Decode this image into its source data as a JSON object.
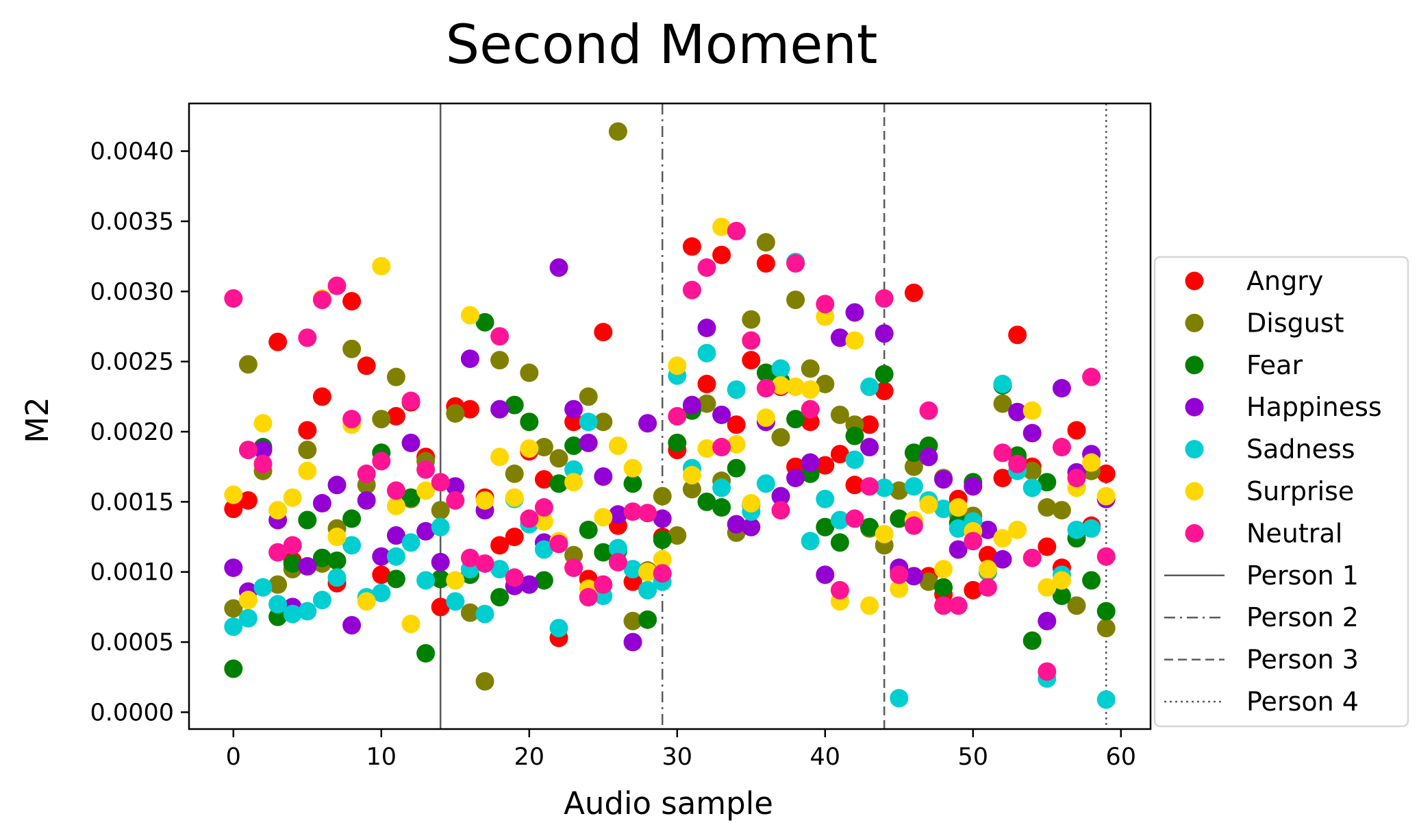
{
  "chart_data": {
    "type": "scatter",
    "title": "Second Moment",
    "xlabel": "Audio sample",
    "ylabel": "M2",
    "xlim": [
      -3,
      62
    ],
    "ylim": [
      -0.00012,
      0.00434
    ],
    "xticks": [
      0,
      10,
      20,
      30,
      40,
      50,
      60
    ],
    "xtick_labels": [
      "0",
      "10",
      "20",
      "30",
      "40",
      "50",
      "60"
    ],
    "yticks": [
      0,
      0.0005,
      0.001,
      0.0015,
      0.002,
      0.0025,
      0.003,
      0.0035,
      0.004
    ],
    "ytick_labels": [
      "0.0000",
      "0.0005",
      "0.0010",
      "0.0015",
      "0.0020",
      "0.0025",
      "0.0030",
      "0.0035",
      "0.0040"
    ],
    "grid": false,
    "legend_position": "outside-right",
    "series": [
      {
        "name": "Angry",
        "color": "#ff0000",
        "x": [
          0,
          1,
          3,
          4,
          5,
          6,
          7,
          8,
          9,
          10,
          11,
          12,
          13,
          14,
          15,
          16,
          17,
          18,
          19,
          20,
          21,
          22,
          23,
          24,
          25,
          26,
          27,
          28,
          29,
          30,
          31,
          32,
          33,
          34,
          35,
          36,
          37,
          38,
          39,
          40,
          41,
          42,
          43,
          44,
          45,
          46,
          47,
          48,
          49,
          50,
          51,
          52,
          53,
          54,
          55,
          56,
          57,
          58,
          59
        ],
        "y": [
          0.00145,
          0.00151,
          0.00264,
          0.00108,
          0.00201,
          0.00225,
          0.00092,
          0.00293,
          0.00247,
          0.00098,
          0.00211,
          0.00221,
          0.00182,
          0.00075,
          0.00218,
          0.00216,
          0.00153,
          0.00119,
          0.00125,
          0.00186,
          0.00166,
          0.00053,
          0.00207,
          0.00095,
          0.00271,
          0.00133,
          0.00093,
          0.00101,
          0.00125,
          0.00187,
          0.00332,
          0.00234,
          0.00326,
          0.00205,
          0.00251,
          0.0032,
          0.00232,
          0.00175,
          0.00207,
          0.00176,
          0.00184,
          0.00162,
          0.00205,
          0.00229,
          0.001,
          0.00299,
          0.00097,
          0.00084,
          0.00152,
          0.00087,
          0.00112,
          0.00167,
          0.00269,
          0.00175,
          0.00118,
          0.00103,
          0.00201,
          0.00133,
          0.0017
        ]
      },
      {
        "name": "Disgust",
        "color": "#808000",
        "x": [
          0,
          1,
          2,
          3,
          4,
          5,
          6,
          7,
          8,
          9,
          10,
          11,
          12,
          13,
          14,
          15,
          16,
          17,
          18,
          19,
          20,
          21,
          22,
          23,
          24,
          25,
          26,
          27,
          28,
          29,
          30,
          31,
          32,
          33,
          34,
          35,
          36,
          37,
          38,
          39,
          40,
          41,
          42,
          43,
          44,
          45,
          46,
          47,
          48,
          49,
          50,
          51,
          52,
          53,
          54,
          55,
          56,
          57,
          58,
          59
        ],
        "y": [
          0.00074,
          0.00248,
          0.00172,
          0.00091,
          0.00102,
          0.00187,
          0.00106,
          0.00131,
          0.00259,
          0.00162,
          0.00209,
          0.00239,
          0.00152,
          0.00179,
          0.00144,
          0.00213,
          0.00071,
          0.00022,
          0.00251,
          0.0017,
          0.00242,
          0.00189,
          0.00181,
          0.00112,
          0.00225,
          0.00207,
          0.00414,
          0.00065,
          0.00101,
          0.00154,
          0.00126,
          0.00159,
          0.0022,
          0.00165,
          0.00128,
          0.0028,
          0.00335,
          0.00196,
          0.00294,
          0.00245,
          0.00234,
          0.00212,
          0.00205,
          0.00131,
          0.00119,
          0.00158,
          0.00175,
          0.00093,
          0.00167,
          0.00141,
          0.0014,
          0.001,
          0.0022,
          0.00181,
          0.00172,
          0.00146,
          0.00144,
          0.00076,
          0.00172,
          0.0006
        ]
      },
      {
        "name": "Fear",
        "color": "#008000",
        "x": [
          0,
          2,
          3,
          4,
          5,
          6,
          7,
          8,
          10,
          11,
          12,
          13,
          14,
          16,
          17,
          18,
          19,
          20,
          21,
          22,
          23,
          24,
          25,
          26,
          27,
          28,
          29,
          30,
          31,
          32,
          33,
          34,
          35,
          36,
          37,
          38,
          39,
          40,
          41,
          42,
          43,
          44,
          45,
          46,
          47,
          48,
          49,
          50,
          52,
          53,
          54,
          55,
          56,
          57,
          58,
          59
        ],
        "y": [
          0.00031,
          0.00189,
          0.00068,
          0.00106,
          0.00137,
          0.0011,
          0.00108,
          0.00138,
          0.00185,
          0.00095,
          0.00153,
          0.00042,
          0.00095,
          0.00098,
          0.00278,
          0.00082,
          0.00219,
          0.00207,
          0.00094,
          0.00163,
          0.0019,
          0.0013,
          0.00114,
          0.00115,
          0.00163,
          0.00066,
          0.00123,
          0.00192,
          0.00215,
          0.0015,
          0.00146,
          0.00174,
          0.00148,
          0.00242,
          0.00236,
          0.00209,
          0.0017,
          0.00132,
          0.00121,
          0.00197,
          0.00132,
          0.00241,
          0.00138,
          0.00185,
          0.0019,
          0.00089,
          0.00135,
          0.00164,
          0.00233,
          0.00183,
          0.00051,
          0.00164,
          0.00083,
          0.00124,
          0.00094,
          0.00072
        ]
      },
      {
        "name": "Happiness",
        "color": "#9400d3",
        "x": [
          0,
          1,
          2,
          3,
          4,
          5,
          6,
          7,
          8,
          9,
          10,
          11,
          12,
          13,
          14,
          15,
          16,
          17,
          18,
          19,
          20,
          21,
          22,
          23,
          24,
          25,
          26,
          27,
          28,
          29,
          31,
          32,
          33,
          34,
          35,
          36,
          37,
          38,
          39,
          40,
          41,
          42,
          43,
          44,
          45,
          46,
          47,
          48,
          49,
          50,
          51,
          52,
          53,
          54,
          55,
          56,
          57,
          58,
          59
        ],
        "y": [
          0.00103,
          0.00086,
          0.00187,
          0.00137,
          0.00075,
          0.00104,
          0.00149,
          0.00162,
          0.00062,
          0.00151,
          0.00111,
          0.00126,
          0.00192,
          0.00129,
          0.00107,
          0.00161,
          0.00252,
          0.00144,
          0.00216,
          0.0009,
          0.00091,
          0.00121,
          0.00317,
          0.00216,
          0.00192,
          0.00168,
          0.00141,
          0.0005,
          0.00206,
          0.00138,
          0.00219,
          0.00274,
          0.00212,
          0.00134,
          0.00132,
          0.00207,
          0.00154,
          0.00167,
          0.00178,
          0.00098,
          0.00267,
          0.00285,
          0.00189,
          0.0027,
          0.00103,
          0.00097,
          0.00182,
          0.00166,
          0.00116,
          0.00161,
          0.0013,
          0.00109,
          0.00214,
          0.00199,
          0.00065,
          0.00231,
          0.00171,
          0.00184,
          0.00152
        ]
      },
      {
        "name": "Sadness",
        "color": "#00ced1",
        "x": [
          0,
          1,
          2,
          3,
          4,
          5,
          6,
          7,
          8,
          9,
          10,
          11,
          12,
          13,
          14,
          15,
          16,
          17,
          18,
          19,
          20,
          21,
          22,
          23,
          24,
          25,
          26,
          27,
          28,
          29,
          30,
          31,
          32,
          33,
          34,
          35,
          36,
          37,
          38,
          39,
          40,
          41,
          42,
          43,
          44,
          45,
          46,
          47,
          48,
          49,
          50,
          51,
          52,
          53,
          54,
          55,
          56,
          57,
          58,
          59
        ],
        "y": [
          0.00061,
          0.00067,
          0.00089,
          0.00077,
          0.0007,
          0.00072,
          0.0008,
          0.00096,
          0.00119,
          0.00082,
          0.00085,
          0.00111,
          0.00121,
          0.00094,
          0.00132,
          0.00079,
          0.00102,
          0.0007,
          0.00102,
          0.00152,
          0.00134,
          0.00116,
          0.0006,
          0.00173,
          0.00207,
          0.00083,
          0.00117,
          0.00102,
          0.00087,
          0.00093,
          0.0024,
          0.00174,
          0.00256,
          0.0016,
          0.0023,
          0.00143,
          0.00163,
          0.00245,
          0.00321,
          0.00122,
          0.00152,
          0.00137,
          0.0018,
          0.00232,
          0.0016,
          0.0001,
          0.00161,
          0.00151,
          0.00145,
          0.00131,
          0.00136,
          0.00101,
          0.00234,
          0.00172,
          0.0016,
          0.00024,
          0.00098,
          0.0013,
          0.00131,
          9e-05
        ]
      },
      {
        "name": "Surprise",
        "color": "#ffd700",
        "x": [
          0,
          1,
          2,
          3,
          4,
          5,
          6,
          7,
          8,
          9,
          10,
          11,
          12,
          13,
          14,
          15,
          16,
          17,
          18,
          19,
          20,
          21,
          22,
          23,
          24,
          25,
          26,
          27,
          28,
          29,
          30,
          31,
          32,
          33,
          34,
          35,
          36,
          37,
          38,
          39,
          40,
          41,
          42,
          43,
          44,
          45,
          46,
          47,
          48,
          49,
          50,
          51,
          52,
          53,
          54,
          55,
          56,
          57,
          58,
          59
        ],
        "y": [
          0.00155,
          0.0008,
          0.00206,
          0.00144,
          0.00153,
          0.00172,
          0.00295,
          0.00125,
          0.00205,
          0.00079,
          0.00318,
          0.00147,
          0.00063,
          0.00158,
          0.00164,
          0.00094,
          0.00283,
          0.00151,
          0.00182,
          0.00153,
          0.00188,
          0.00136,
          0.00122,
          0.00164,
          0.00088,
          0.00139,
          0.0019,
          0.00174,
          0.001,
          0.00109,
          0.00247,
          0.00169,
          0.00188,
          0.00346,
          0.00191,
          0.00149,
          0.0021,
          0.00233,
          0.00232,
          0.0023,
          0.00282,
          0.00079,
          0.00265,
          0.00076,
          0.00127,
          0.00088,
          0.00137,
          0.00148,
          0.00102,
          0.00146,
          0.00129,
          0.00102,
          0.00124,
          0.0013,
          0.00215,
          0.00089,
          0.00094,
          0.0016,
          0.00178,
          0.00154
        ]
      },
      {
        "name": "Neutral",
        "color": "#ff1493",
        "x": [
          0,
          1,
          2,
          3,
          4,
          5,
          6,
          7,
          8,
          9,
          10,
          11,
          12,
          13,
          14,
          15,
          16,
          17,
          18,
          19,
          20,
          21,
          22,
          23,
          24,
          25,
          26,
          27,
          28,
          29,
          30,
          31,
          32,
          33,
          34,
          35,
          36,
          37,
          38,
          39,
          40,
          41,
          42,
          43,
          44,
          45,
          46,
          47,
          48,
          49,
          50,
          51,
          52,
          53,
          54,
          55,
          56,
          57,
          58,
          59
        ],
        "y": [
          0.00295,
          0.00187,
          0.00177,
          0.00114,
          0.00119,
          0.00267,
          0.00294,
          0.00304,
          0.00209,
          0.0017,
          0.00179,
          0.00158,
          0.00222,
          0.00173,
          0.00164,
          0.00151,
          0.0011,
          0.00106,
          0.00268,
          0.00096,
          0.00138,
          0.00146,
          0.0012,
          0.00103,
          0.00082,
          0.00091,
          0.00107,
          0.00143,
          0.00142,
          0.00099,
          0.00211,
          0.00301,
          0.00317,
          0.00189,
          0.00343,
          0.00265,
          0.00231,
          0.00144,
          0.0032,
          0.00216,
          0.00291,
          0.00087,
          0.00138,
          0.00161,
          0.00295,
          0.00098,
          0.00133,
          0.00215,
          0.00076,
          0.00076,
          0.00122,
          0.00089,
          0.00185,
          0.00177,
          0.0011,
          0.00029,
          0.00189,
          0.00167,
          0.00239,
          0.00111
        ]
      }
    ],
    "vlines": [
      {
        "name": "Person 1",
        "x": 14,
        "dash": "solid"
      },
      {
        "name": "Person 2",
        "x": 29,
        "dash": "dashdot"
      },
      {
        "name": "Person 3",
        "x": 44,
        "dash": "dashed"
      },
      {
        "name": "Person 4",
        "x": 59,
        "dash": "dotted"
      }
    ],
    "vline_color": "#5a5a5a"
  }
}
